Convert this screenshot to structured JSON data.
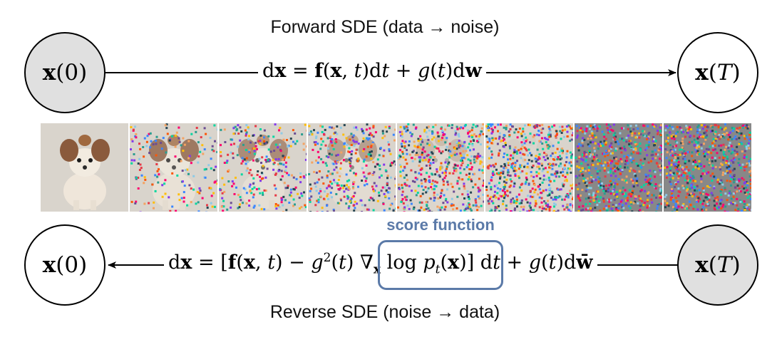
{
  "forward": {
    "title": "Forward SDE (data → noise)",
    "start_node": "x(0)",
    "end_node": "x(T)",
    "equation_text": "dx = f(x, t)dt + g(t)dw"
  },
  "reverse": {
    "title": "Reverse SDE (noise → data)",
    "start_node": "x(T)",
    "end_node": "x(0)",
    "equation_text": "dx = [f(x, t) − g²(t)∇x log pt(x)] dt + g(t)dw̄",
    "score_label": "score function"
  },
  "image_strip": {
    "subject": "dog photo progressively corrupted by noise",
    "noise_levels": [
      0.0,
      0.25,
      0.4,
      0.55,
      0.75,
      0.9,
      0.97,
      1.0
    ]
  },
  "colors": {
    "node_shaded": "#e0e0e0",
    "score_accent": "#5b7aa8",
    "line": "#000000"
  }
}
